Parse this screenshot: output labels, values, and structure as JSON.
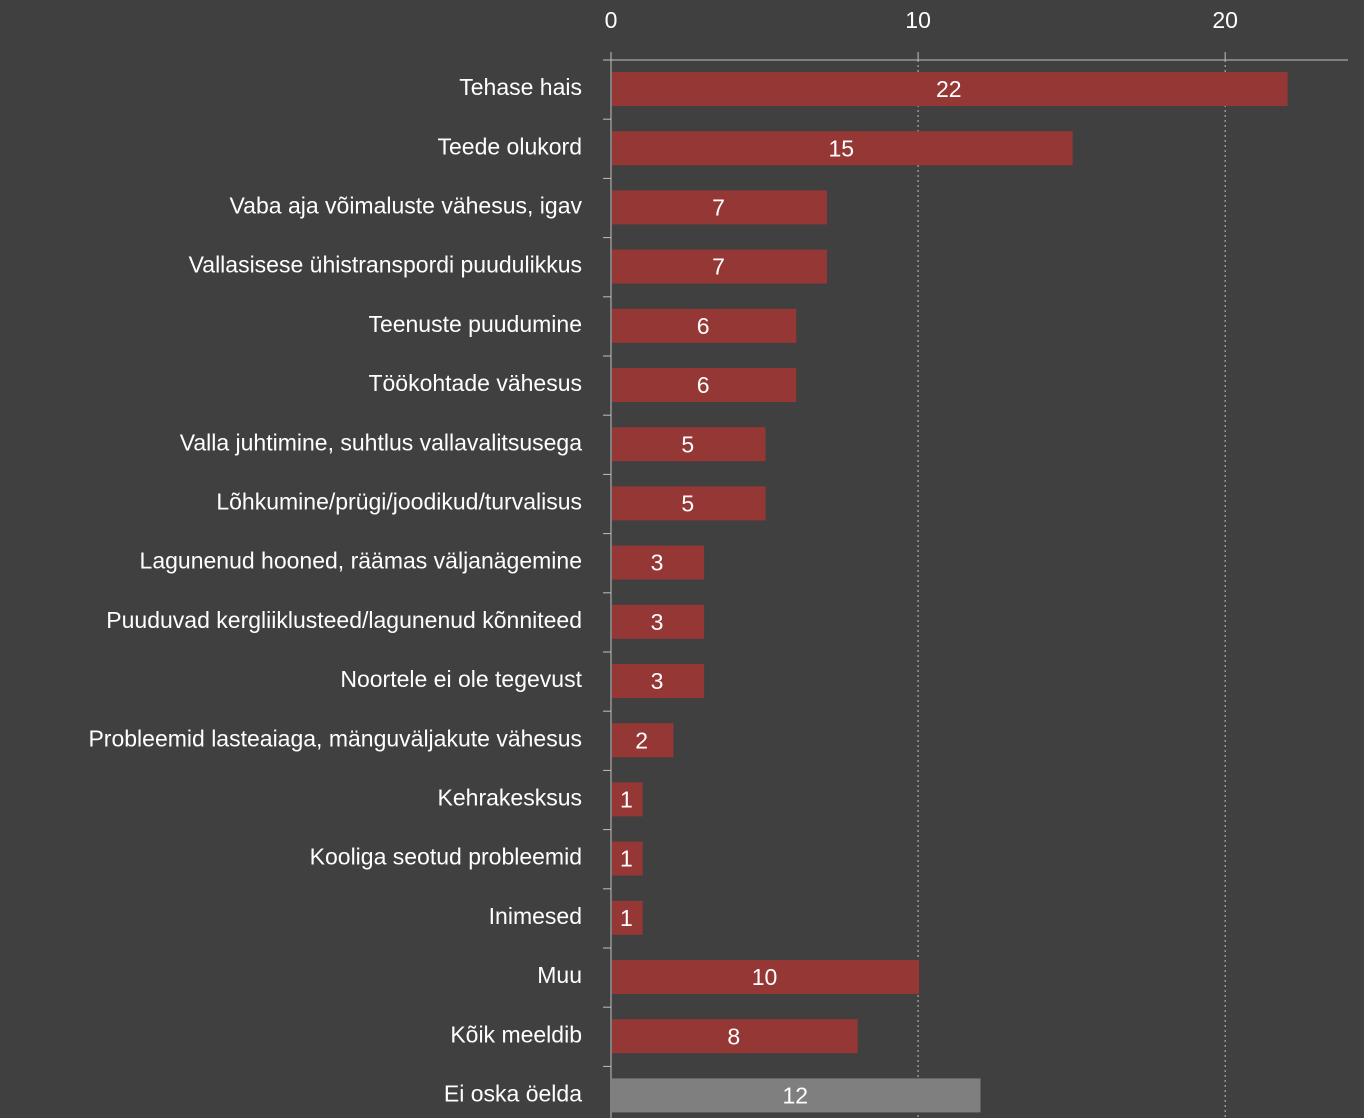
{
  "chart_data": {
    "type": "barh",
    "categories": [
      "Tehase hais",
      "Teede olukord",
      "Vaba aja võimaluste vähesus, igav",
      "Vallasisese ühistranspordi puudulikkus",
      "Teenuste puudumine",
      "Töökohtade vähesus",
      "Valla juhtimine, suhtlus vallavalitsusega",
      "Lõhkumine/prügi/joodikud/turvalisus",
      "Lagunenud hooned, räämas väljanägemine",
      "Puuduvad kergliiklusteed/lagunenud kõnniteed",
      "Noortele ei ole tegevust",
      "Probleemid lasteaiaga, mänguväljakute vähesus",
      "Kehrakesksus",
      "Kooliga seotud probleemid",
      "Inimesed",
      "Muu",
      "Kõik meeldib",
      "Ei oska öelda"
    ],
    "values": [
      22,
      15,
      7,
      7,
      6,
      6,
      5,
      5,
      3,
      3,
      3,
      2,
      1,
      1,
      1,
      10,
      8,
      12
    ],
    "colors": [
      "#953735",
      "#953735",
      "#953735",
      "#953735",
      "#953735",
      "#953735",
      "#953735",
      "#953735",
      "#953735",
      "#953735",
      "#953735",
      "#953735",
      "#953735",
      "#953735",
      "#953735",
      "#953735",
      "#953735",
      "#7f7f7f"
    ],
    "xlim": [
      0,
      24
    ],
    "xticks": [
      0,
      10,
      20
    ],
    "grid": true
  }
}
